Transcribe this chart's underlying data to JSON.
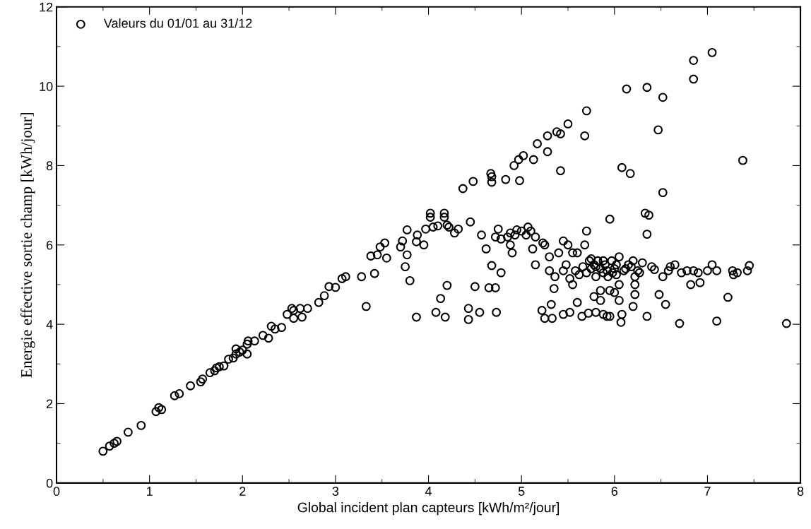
{
  "chart_data": {
    "type": "scatter",
    "xlabel": "Global incident plan capteurs [kWh/m²/jour]",
    "ylabel": "Energie effective sortie champ [kWh/jour]",
    "xlim": [
      0,
      8
    ],
    "ylim": [
      0,
      12
    ],
    "xticks": [
      0,
      1,
      2,
      3,
      4,
      5,
      6,
      7,
      8
    ],
    "yticks": [
      0,
      2,
      4,
      6,
      8,
      10,
      12
    ],
    "grid": false,
    "legend": "top left",
    "marker": "circle",
    "series": [
      {
        "name": "Valeurs du 01/01 au 31/12",
        "color": "#000000",
        "x": [
          0.5,
          0.57,
          0.62,
          0.65,
          0.77,
          0.91,
          1.07,
          1.1,
          1.13,
          1.27,
          1.32,
          1.44,
          1.55,
          1.57,
          1.65,
          1.7,
          1.72,
          1.75,
          1.8,
          1.85,
          1.9,
          1.93,
          1.93,
          1.97,
          2.0,
          2.05,
          2.05,
          2.06,
          2.13,
          2.22,
          2.28,
          2.31,
          2.35,
          2.42,
          2.48,
          2.53,
          2.55,
          2.55,
          2.62,
          2.64,
          2.7,
          2.82,
          2.88,
          2.93,
          3.0,
          3.07,
          3.11,
          3.28,
          3.33,
          3.38,
          3.42,
          3.45,
          3.48,
          3.53,
          3.55,
          3.7,
          3.72,
          3.75,
          3.77,
          3.77,
          3.8,
          3.87,
          3.88,
          3.87,
          3.95,
          3.97,
          4.02,
          4.02,
          4.05,
          4.1,
          4.08,
          4.17,
          4.17,
          4.13,
          4.2,
          4.22,
          4.18,
          4.2,
          4.28,
          4.32,
          4.37,
          4.45,
          4.43,
          4.43,
          4.48,
          4.5,
          4.55,
          4.57,
          4.62,
          4.65,
          4.67,
          4.68,
          4.68,
          4.68,
          4.72,
          4.72,
          4.75,
          4.78,
          4.78,
          4.73,
          4.83,
          4.85,
          4.88,
          4.88,
          4.9,
          4.92,
          4.93,
          4.95,
          4.97,
          4.98,
          5.0,
          5.02,
          5.05,
          5.07,
          5.1,
          5.13,
          5.15,
          5.17,
          5.12,
          5.15,
          5.23,
          5.22,
          5.25,
          5.28,
          5.28,
          5.3,
          5.32,
          5.33,
          5.36,
          5.38,
          5.42,
          5.42,
          5.45,
          5.5,
          5.48,
          5.5,
          5.52,
          5.55,
          5.55,
          5.6,
          5.65,
          5.68,
          5.68,
          5.7,
          5.7,
          5.72,
          5.7,
          5.73,
          5.75,
          5.78,
          5.8,
          5.82,
          5.85,
          5.85,
          5.88,
          5.9,
          5.93,
          5.95,
          5.95,
          5.97,
          6.0,
          6.02,
          6.05,
          6.05,
          6.07,
          6.08,
          6.12,
          6.13,
          6.17,
          6.18,
          6.2,
          6.22,
          6.25,
          6.3,
          6.33,
          6.35,
          6.35,
          6.35,
          6.37,
          6.4,
          6.43,
          6.47,
          6.48,
          6.52,
          6.52,
          6.52,
          6.55,
          6.58,
          6.6,
          6.65,
          6.7,
          6.72,
          6.78,
          6.82,
          6.85,
          6.85,
          6.85,
          6.9,
          6.92,
          7.0,
          7.05,
          7.05,
          7.1,
          7.1,
          7.22,
          7.28,
          7.27,
          7.32,
          7.38,
          7.43,
          7.45,
          7.85,
          5.58,
          5.62,
          5.66,
          5.75,
          5.8,
          5.88,
          5.92,
          5.98,
          6.02,
          6.1,
          6.15,
          6.22,
          6.27,
          5.85,
          5.95,
          6.0,
          6.05,
          5.78,
          5.8,
          5.88,
          5.92,
          6.2,
          6.22,
          6.08,
          5.6,
          5.45,
          5.4,
          5.45,
          5.52,
          5.35,
          5.3,
          5.25
        ],
        "values": [
          0.8,
          0.93,
          1.0,
          1.05,
          1.28,
          1.45,
          1.8,
          1.9,
          1.85,
          2.2,
          2.25,
          2.45,
          2.55,
          2.62,
          2.78,
          2.83,
          2.9,
          2.93,
          2.95,
          3.12,
          3.15,
          3.25,
          3.38,
          3.3,
          3.35,
          3.25,
          3.5,
          3.58,
          3.58,
          3.72,
          3.65,
          3.95,
          3.88,
          3.92,
          4.25,
          4.4,
          4.15,
          4.35,
          4.4,
          4.18,
          4.4,
          4.55,
          4.72,
          4.95,
          4.93,
          5.15,
          5.2,
          5.2,
          4.45,
          5.72,
          5.28,
          5.75,
          5.95,
          6.05,
          5.67,
          5.95,
          6.1,
          5.45,
          5.75,
          6.38,
          5.1,
          6.08,
          6.25,
          4.18,
          6.0,
          6.4,
          6.8,
          6.7,
          6.45,
          6.48,
          4.3,
          6.8,
          6.7,
          4.65,
          6.5,
          6.45,
          4.18,
          4.98,
          6.3,
          6.4,
          7.42,
          6.58,
          4.4,
          4.12,
          7.6,
          4.95,
          4.3,
          6.25,
          5.9,
          4.92,
          7.8,
          7.72,
          7.58,
          5.48,
          4.92,
          6.2,
          6.4,
          6.15,
          5.3,
          4.3,
          7.65,
          6.2,
          6.3,
          6.0,
          5.8,
          8.0,
          6.25,
          6.38,
          8.15,
          7.62,
          6.35,
          8.25,
          6.25,
          6.45,
          6.35,
          8.15,
          6.2,
          8.55,
          5.9,
          5.5,
          6.05,
          4.35,
          4.15,
          8.75,
          8.35,
          5.35,
          4.5,
          4.15,
          5.2,
          8.85,
          8.8,
          7.87,
          6.1,
          9.05,
          5.5,
          6.0,
          4.3,
          5.8,
          5.0,
          5.8,
          4.2,
          8.75,
          6.0,
          9.38,
          6.35,
          4.28,
          5.3,
          5.6,
          5.4,
          5.5,
          5.2,
          5.6,
          5.4,
          4.6,
          5.3,
          5.5,
          5.2,
          6.65,
          4.2,
          5.6,
          5.4,
          5.25,
          5.0,
          5.7,
          4.05,
          7.95,
          5.4,
          9.93,
          7.8,
          5.45,
          5.6,
          5.0,
          5.35,
          5.55,
          6.8,
          9.97,
          6.27,
          4.2,
          6.75,
          5.45,
          5.38,
          8.9,
          4.75,
          9.72,
          7.32,
          5.2,
          4.5,
          5.35,
          5.45,
          5.5,
          4.02,
          5.3,
          5.35,
          5.0,
          10.65,
          10.18,
          5.35,
          5.3,
          5.05,
          5.35,
          10.85,
          5.5,
          5.35,
          4.08,
          4.68,
          5.25,
          5.35,
          5.3,
          8.13,
          5.35,
          5.48,
          4.02,
          5.35,
          5.25,
          5.45,
          5.65,
          5.45,
          5.6,
          5.35,
          5.3,
          5.5,
          5.35,
          5.5,
          5.2,
          5.3,
          4.85,
          4.85,
          4.8,
          4.6,
          4.7,
          4.3,
          4.25,
          4.2,
          4.45,
          4.75,
          4.25,
          4.55,
          4.25,
          5.8,
          5.35,
          5.15,
          4.9,
          5.7,
          6.0
        ]
      }
    ]
  }
}
